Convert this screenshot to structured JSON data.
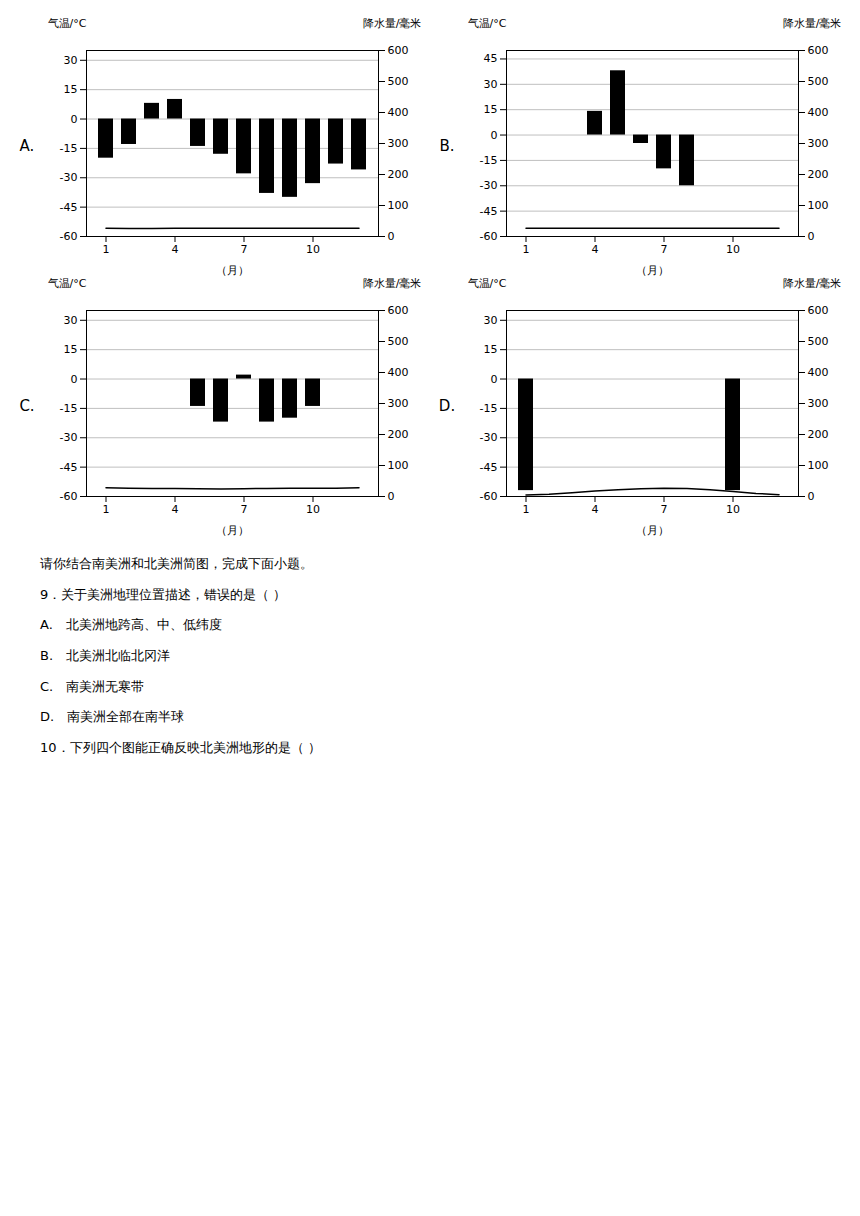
{
  "chart_data": [
    {
      "type": "bar",
      "title": "A.",
      "xlabel": "（月）",
      "ylabel": "气温/°C",
      "y2label": "降水量/毫米",
      "categories": [
        "1",
        null,
        null,
        "4",
        null,
        null,
        "7",
        null,
        null,
        "10",
        null,
        null
      ],
      "series": [
        {
          "type": "bar",
          "color": "black",
          "values": [
            -20,
            -13,
            8,
            10,
            -14,
            -18,
            -28,
            -38,
            -40,
            -33,
            -23,
            -26
          ]
        },
        {
          "type": "line",
          "axis": "y2",
          "color": "black",
          "values": [
            27,
            26,
            26,
            27,
            27,
            27,
            27,
            27,
            27,
            27,
            27,
            27
          ]
        }
      ],
      "ylim": [
        -60,
        35
      ],
      "yticks": [
        30,
        15,
        0,
        -15,
        -30,
        -45,
        -60
      ],
      "y2lim": [
        0,
        600
      ],
      "y2ticks": [
        600,
        500,
        400,
        300,
        200,
        100,
        0
      ],
      "grid": true
    },
    {
      "type": "bar",
      "title": "B.",
      "xlabel": "（月）",
      "ylabel": "气温/°C",
      "y2label": "降水量/毫米",
      "categories": [
        "1",
        null,
        null,
        "4",
        null,
        null,
        "7",
        null,
        null,
        "10",
        null,
        null
      ],
      "series": [
        {
          "type": "bar",
          "color": "black",
          "values": [
            0,
            0,
            0,
            14,
            38,
            -5,
            -20,
            -30,
            0,
            0,
            0,
            0
          ]
        },
        {
          "type": "line",
          "axis": "y2",
          "color": "black",
          "values": [
            27,
            27,
            27,
            27,
            27,
            27,
            27,
            27,
            27,
            27,
            27,
            27
          ]
        }
      ],
      "ylim": [
        -60,
        50
      ],
      "yticks": [
        45,
        30,
        15,
        0,
        -15,
        -30,
        -45,
        -60
      ],
      "y2lim": [
        0,
        600
      ],
      "y2ticks": [
        600,
        500,
        400,
        300,
        200,
        100,
        0
      ],
      "grid": true
    },
    {
      "type": "bar",
      "title": "C.",
      "xlabel": "（月）",
      "ylabel": "气温/°C",
      "y2label": "降水量/毫米",
      "categories": [
        "1",
        null,
        null,
        "4",
        null,
        null,
        "7",
        null,
        null,
        "10",
        null,
        null
      ],
      "series": [
        {
          "type": "bar",
          "color": "black",
          "values": [
            0,
            0,
            0,
            0,
            -14,
            -22,
            2,
            -22,
            -20,
            -14,
            0,
            0
          ]
        },
        {
          "type": "line",
          "axis": "y2",
          "color": "black",
          "values": [
            28,
            27,
            26,
            26,
            25,
            24,
            25,
            26,
            27,
            27,
            27,
            28
          ]
        }
      ],
      "ylim": [
        -60,
        35
      ],
      "yticks": [
        30,
        15,
        0,
        -15,
        -30,
        -45,
        -60
      ],
      "y2lim": [
        0,
        600
      ],
      "y2ticks": [
        600,
        500,
        400,
        300,
        200,
        100,
        0
      ],
      "grid": true
    },
    {
      "type": "bar",
      "title": "D.",
      "xlabel": "（月）",
      "ylabel": "气温/°C",
      "y2label": "降水量/毫米",
      "categories": [
        "1",
        null,
        null,
        "4",
        null,
        null,
        "7",
        null,
        null,
        "10",
        null,
        null
      ],
      "series": [
        {
          "type": "bar",
          "color": "black",
          "values": [
            -57,
            0,
            0,
            0,
            0,
            0,
            0,
            0,
            0,
            -57,
            0,
            0
          ]
        },
        {
          "type": "line",
          "axis": "y2",
          "color": "black",
          "values": [
            5,
            7,
            12,
            18,
            22,
            25,
            27,
            26,
            22,
            16,
            10,
            6
          ]
        }
      ],
      "ylim": [
        -60,
        35
      ],
      "yticks": [
        30,
        15,
        0,
        -15,
        -30,
        -45,
        -60
      ],
      "y2lim": [
        0,
        600
      ],
      "y2ticks": [
        600,
        500,
        400,
        300,
        200,
        100,
        0
      ],
      "grid": true
    }
  ],
  "annotations": [
    "请你结合南美洲和北美洲简图，完成下面小题。",
    "9．关于美洲地理位置描述，错误的是（  ）",
    "A.　北美洲地跨高、中、低纬度",
    "B.　北美洲北临北冈洋",
    "C.　南美洲无寒带",
    "D.　南美洲全部在南半球",
    "10．下列四个图能正确反映北美洲地形的是（  ）"
  ]
}
